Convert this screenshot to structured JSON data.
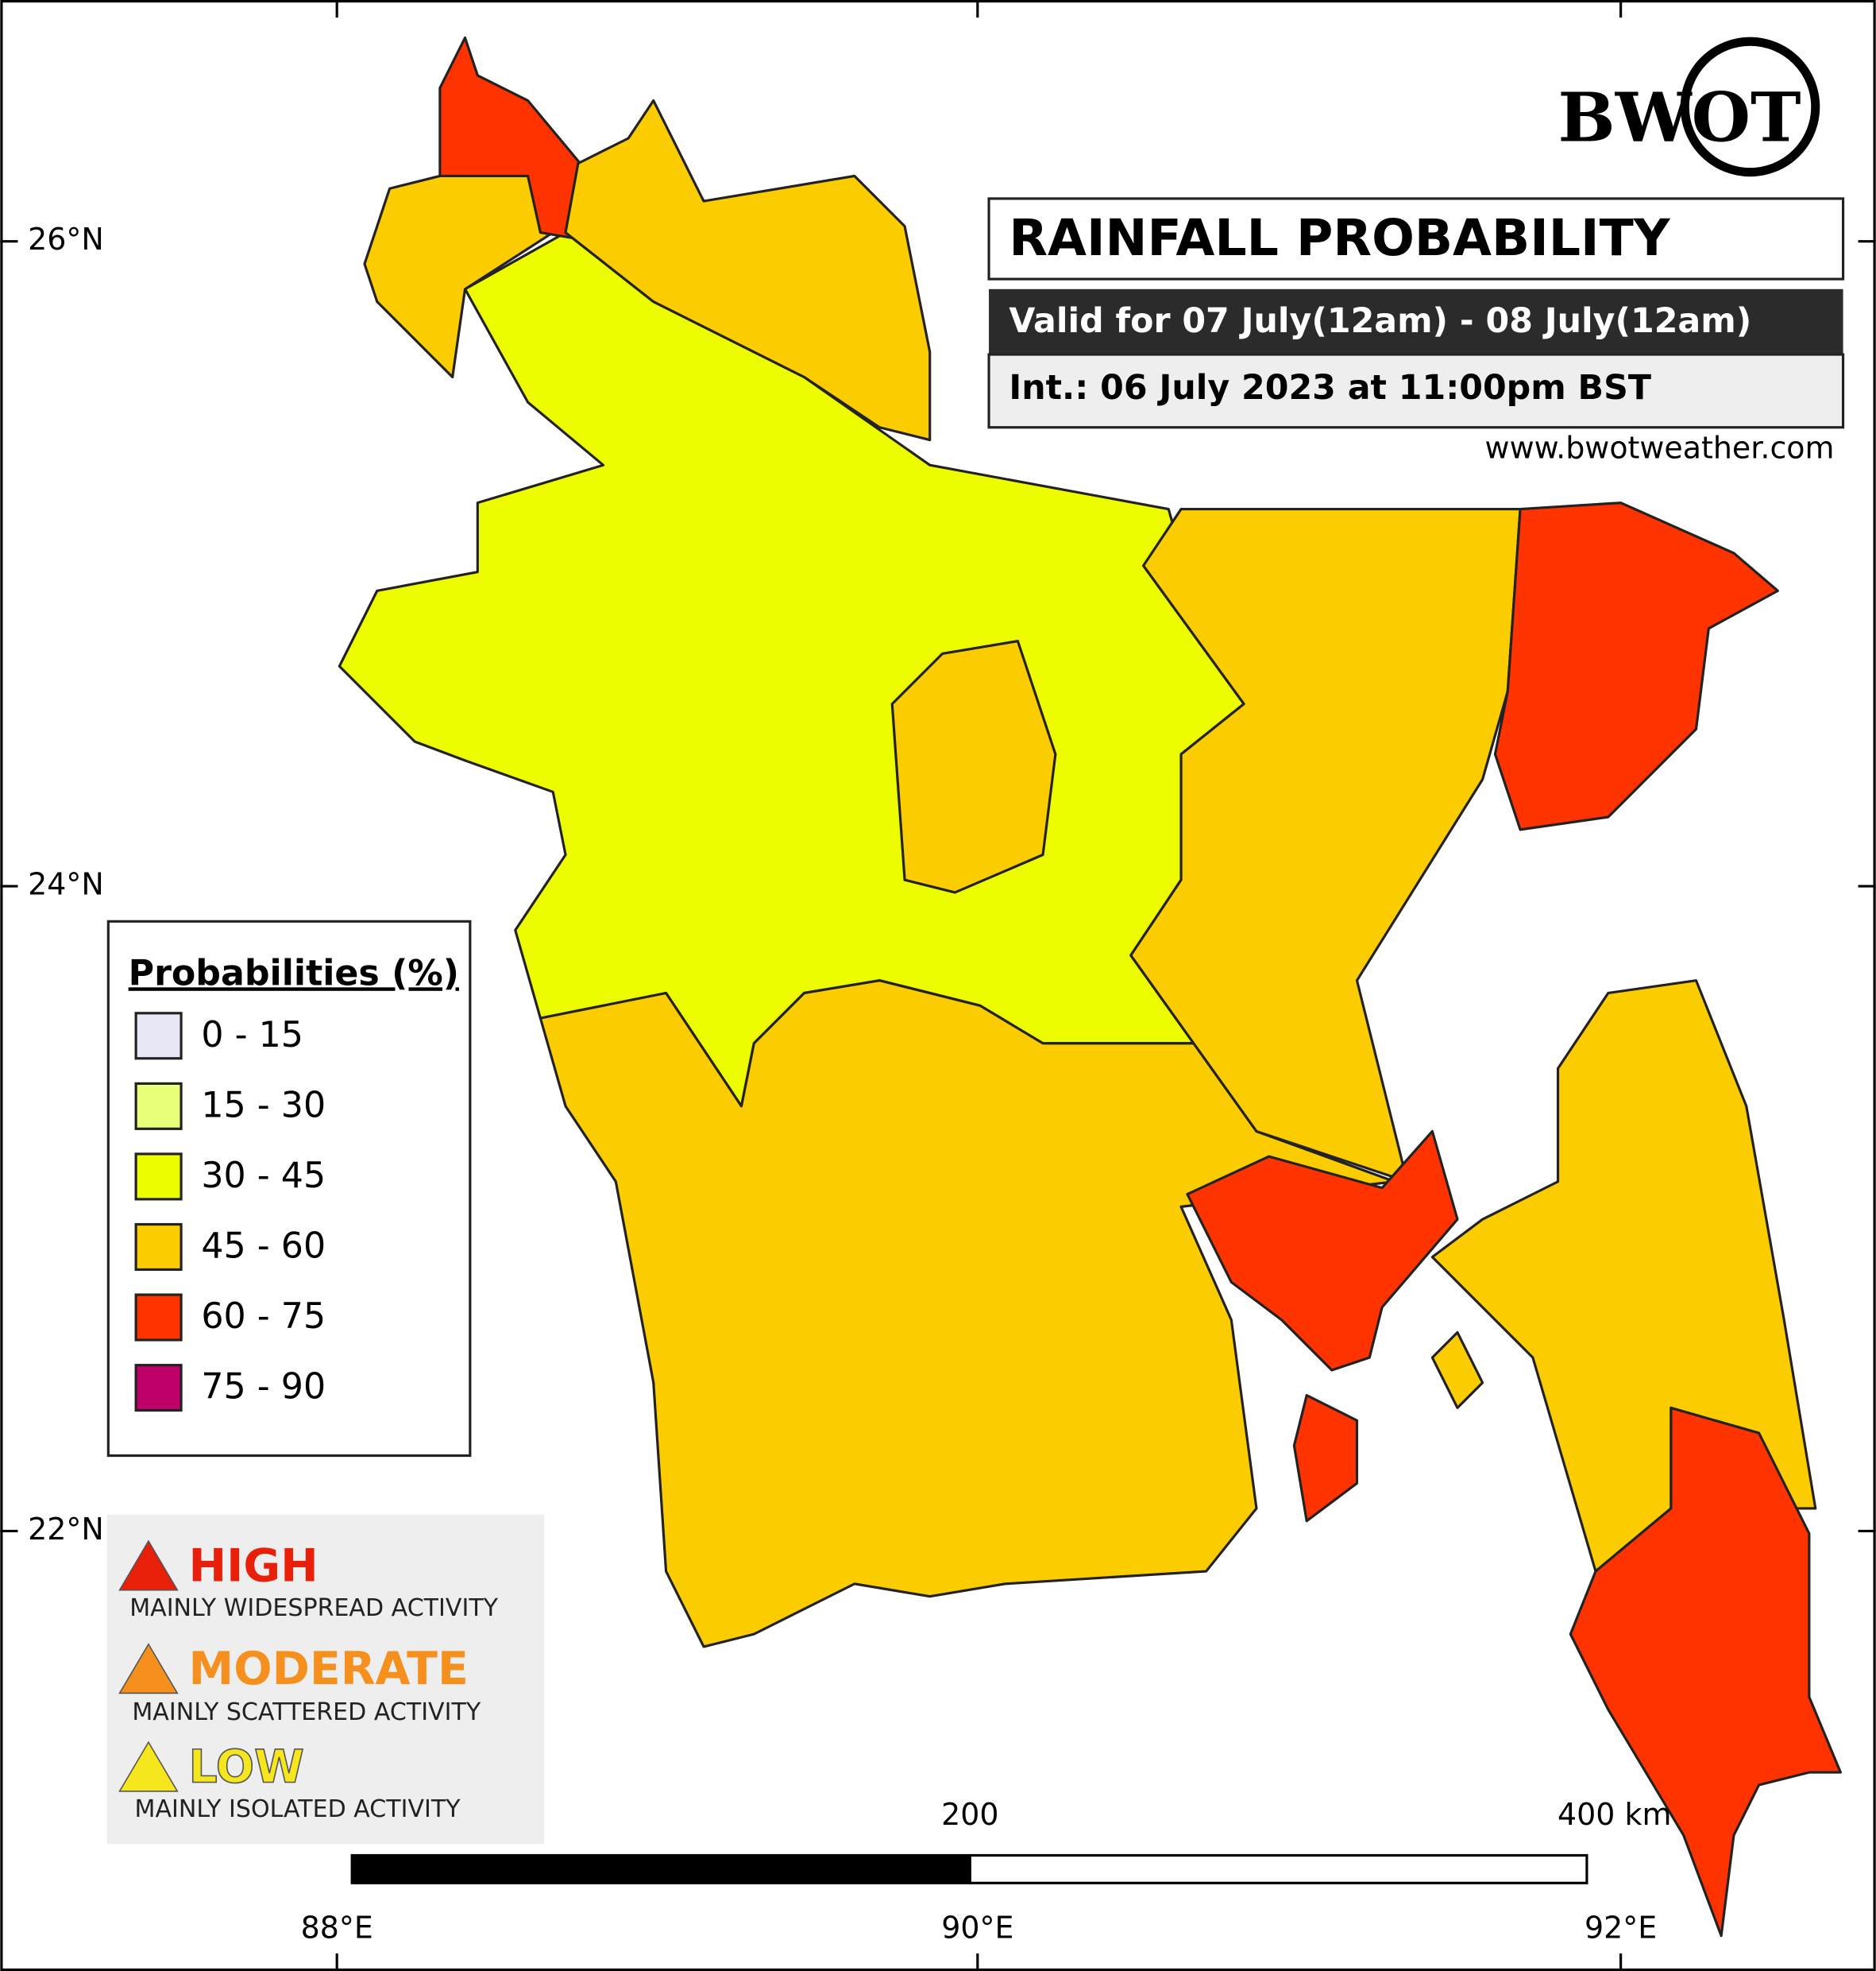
{
  "logo": "BWOT",
  "header": {
    "title": "RAINFALL PROBABILITY",
    "valid": "Valid for 07 July(12am) - 08 July(12am)",
    "issued": "Int.: 06 July 2023 at 11:00pm BST",
    "website": "www.bwotweather.com"
  },
  "legend": {
    "title": "Probabilities (%)",
    "items": [
      {
        "label": "0 - 15",
        "color": "#e6e8f5"
      },
      {
        "label": "15 - 30",
        "color": "#e8ff7a"
      },
      {
        "label": "30 - 45",
        "color": "#eefc00"
      },
      {
        "label": "45 - 60",
        "color": "#fbcc00"
      },
      {
        "label": "60 - 75",
        "color": "#ff3300"
      },
      {
        "label": "75 - 90",
        "color": "#c0006a"
      }
    ]
  },
  "activity": [
    {
      "level": "HIGH",
      "description": "MAINLY WIDESPREAD ACTIVITY",
      "color": "#e8200a"
    },
    {
      "level": "MODERATE",
      "description": "MAINLY SCATTERED ACTIVITY",
      "color": "#f5901e"
    },
    {
      "level": "LOW",
      "description": "MAINLY ISOLATED ACTIVITY",
      "color": "#f5e61e"
    }
  ],
  "axes": {
    "latitude": [
      "26°N",
      "24°N",
      "22°N"
    ],
    "longitude": [
      "88°E",
      "90°E",
      "92°E"
    ]
  },
  "scale_bar": {
    "labels": [
      "200",
      "400 km"
    ]
  }
}
